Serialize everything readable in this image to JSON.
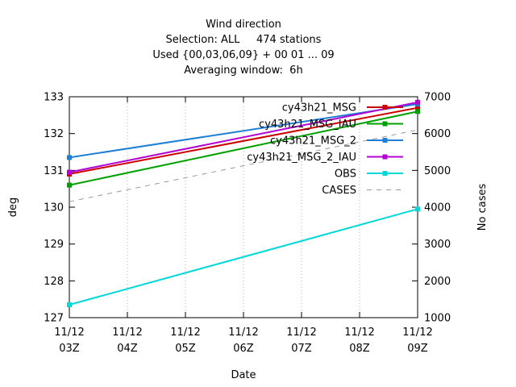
{
  "chart_data": {
    "type": "line",
    "title_lines": [
      "Wind direction",
      "Selection: ALL     474 stations",
      "Used {00,03,06,09} + 00 01 ... 09",
      "Averaging window:  6h"
    ],
    "xlabel": "Date",
    "ylabel": "deg",
    "y2label": "No cases",
    "categories": [
      "11/12 03Z",
      "11/12 04Z",
      "11/12 05Z",
      "11/12 06Z",
      "11/12 07Z",
      "11/12 08Z",
      "11/12 09Z"
    ],
    "x_tick_lines": [
      [
        "11/12",
        "03Z"
      ],
      [
        "11/12",
        "04Z"
      ],
      [
        "11/12",
        "05Z"
      ],
      [
        "11/12",
        "06Z"
      ],
      [
        "11/12",
        "07Z"
      ],
      [
        "11/12",
        "08Z"
      ],
      [
        "11/12",
        "09Z"
      ]
    ],
    "ylim": [
      127,
      133
    ],
    "y_ticks": [
      127,
      128,
      129,
      130,
      131,
      132,
      133
    ],
    "y2lim": [
      1000,
      7000
    ],
    "y2_ticks": [
      1000,
      2000,
      3000,
      4000,
      5000,
      6000,
      7000
    ],
    "grid": {
      "x": true,
      "y": false,
      "style": "dotted"
    },
    "legend_position": "top-right",
    "series": [
      {
        "name": "cy43h21_MSG",
        "color": "#cc0000",
        "axis": "y",
        "x": [
          "11/12 03Z",
          "11/12 09Z"
        ],
        "values": [
          130.9,
          132.7
        ]
      },
      {
        "name": "cy43h21_MSG_IAU",
        "color": "#00a000",
        "axis": "y",
        "x": [
          "11/12 03Z",
          "11/12 09Z"
        ],
        "values": [
          130.6,
          132.6
        ]
      },
      {
        "name": "cy43h21_MSG_2",
        "color": "#1f7fd6",
        "axis": "y",
        "x": [
          "11/12 03Z",
          "11/12 09Z"
        ],
        "values": [
          131.35,
          132.8
        ]
      },
      {
        "name": "cy43h21_MSG_2_IAU",
        "color": "#b300d6",
        "axis": "y",
        "x": [
          "11/12 03Z",
          "11/12 09Z"
        ],
        "values": [
          130.95,
          132.85
        ]
      },
      {
        "name": "OBS",
        "color": "#00d8d8",
        "axis": "y",
        "x": [
          "11/12 03Z",
          "11/12 09Z"
        ],
        "values": [
          127.35,
          129.95
        ]
      },
      {
        "name": "CASES",
        "color": "#999999",
        "axis": "y2",
        "dashed": true,
        "x": [
          "11/12 03Z",
          "11/12 09Z"
        ],
        "values": [
          4150,
          6100
        ]
      }
    ]
  }
}
